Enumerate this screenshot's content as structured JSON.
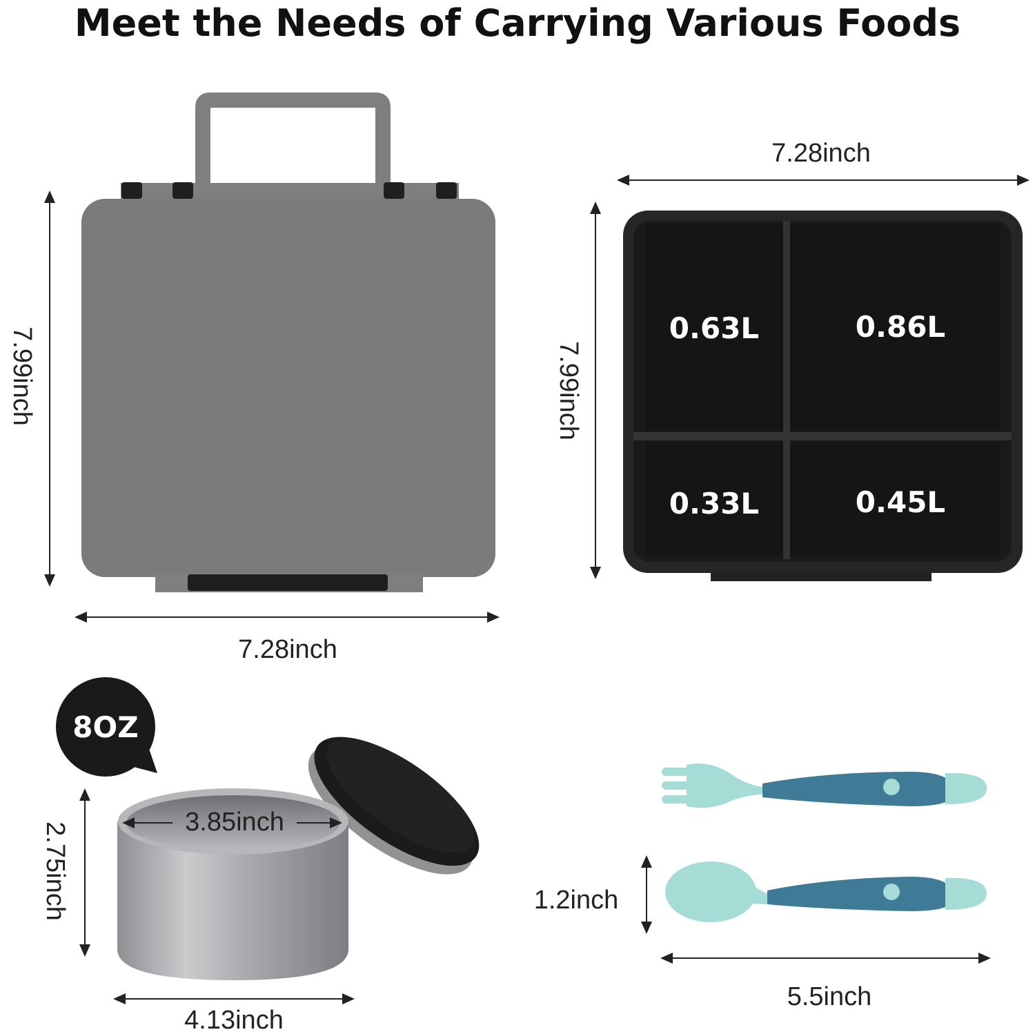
{
  "title": "Meet the Needs of Carrying Various Foods",
  "lunchbox_closed": {
    "height_label": "7.99inch",
    "width_label": "7.28inch",
    "body_color": "#7b7b7b"
  },
  "lunchbox_open": {
    "width_label": "7.28inch",
    "height_label": "7.99inch",
    "tray_color": "#262626",
    "compartments": [
      {
        "label": "0.63L"
      },
      {
        "label": "0.86L"
      },
      {
        "label": "0.33L"
      },
      {
        "label": "0.45L"
      }
    ]
  },
  "food_jar": {
    "badge": "8OZ",
    "inner_diameter_label": "3.85inch",
    "height_label": "2.75inch",
    "outer_diameter_label": "4.13inch"
  },
  "utensils": {
    "width_label": "1.2inch",
    "length_label": "5.5inch",
    "head_color": "#a6dcd6",
    "handle_color": "#3f7b96"
  }
}
